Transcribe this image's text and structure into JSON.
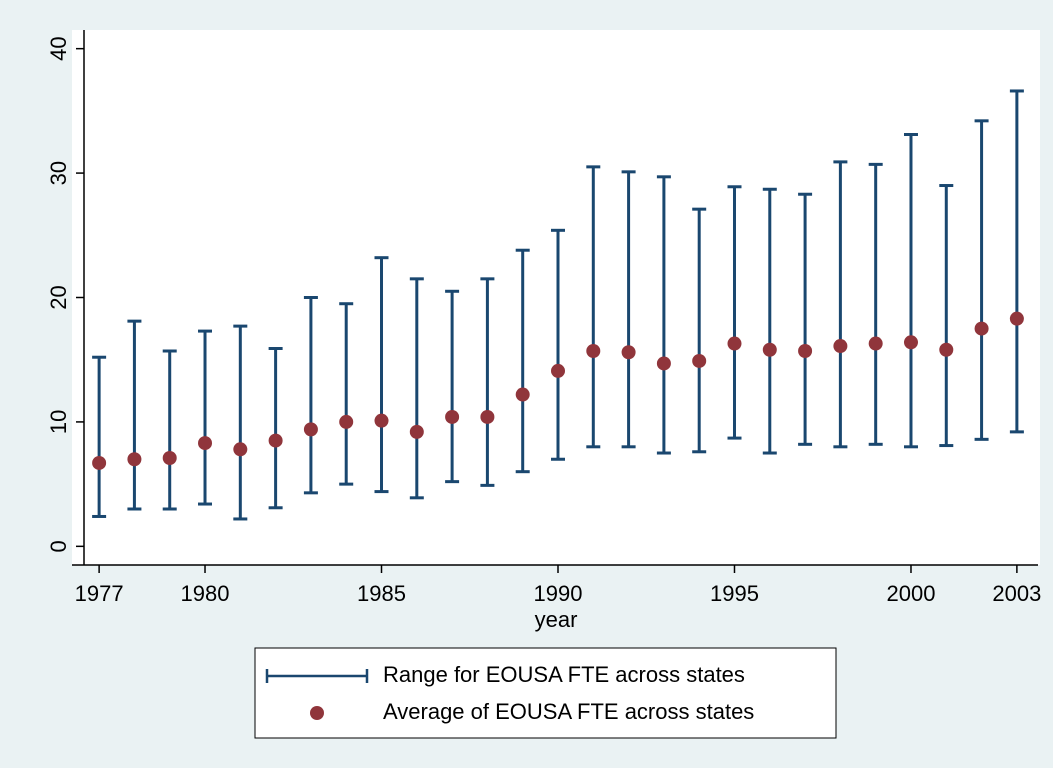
{
  "chart_data": {
    "type": "range",
    "x": [
      1977,
      1978,
      1979,
      1980,
      1981,
      1982,
      1983,
      1984,
      1985,
      1986,
      1987,
      1988,
      1989,
      1990,
      1991,
      1992,
      1993,
      1994,
      1995,
      1996,
      1997,
      1998,
      1999,
      2000,
      2001,
      2002,
      2003
    ],
    "series": [
      {
        "name": "Range for EOUSA FTE across states",
        "type": "rcap",
        "color": "#1a476f",
        "low": [
          2.4,
          3.0,
          3.0,
          3.4,
          2.2,
          3.1,
          4.3,
          5.0,
          4.4,
          3.9,
          5.2,
          4.9,
          6.0,
          7.0,
          8.0,
          8.0,
          7.5,
          7.6,
          8.7,
          7.5,
          8.2,
          8.0,
          8.2,
          8.0,
          8.1,
          8.6,
          9.2
        ],
        "high": [
          15.2,
          18.1,
          15.7,
          17.3,
          17.7,
          15.9,
          20.0,
          19.5,
          23.2,
          21.5,
          20.5,
          21.5,
          23.8,
          25.4,
          30.5,
          30.1,
          29.7,
          27.1,
          28.9,
          28.7,
          28.3,
          30.9,
          30.7,
          33.1,
          29.0,
          34.2,
          36.6
        ]
      },
      {
        "name": "Average of EOUSA FTE across states",
        "type": "scatter",
        "color": "#90353b",
        "values": [
          6.7,
          7.0,
          7.1,
          8.3,
          7.8,
          8.5,
          9.4,
          10.0,
          10.1,
          9.2,
          10.4,
          10.4,
          12.2,
          14.1,
          15.7,
          15.6,
          14.7,
          14.9,
          16.3,
          15.8,
          15.7,
          16.1,
          16.3,
          16.4,
          15.8,
          17.5,
          18.3
        ]
      }
    ],
    "xlabel": "year",
    "xlim": [
      1976.6,
      2003.4
    ],
    "xticks": [
      1977,
      1980,
      1985,
      1990,
      1995,
      2000,
      2003
    ],
    "ylim": [
      -1.5,
      41.5
    ],
    "yticks": [
      0,
      10,
      20,
      30,
      40
    ],
    "grid": false
  }
}
